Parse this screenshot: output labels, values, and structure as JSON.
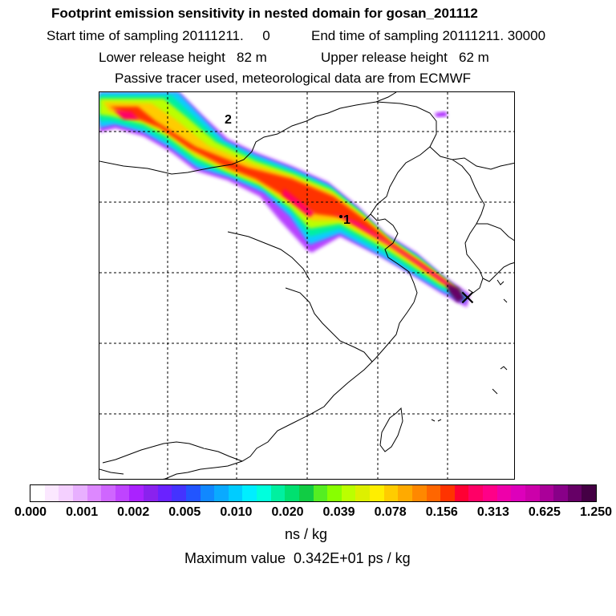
{
  "header": {
    "title": "Footprint emission sensitivity in nested domain for gosan_201112",
    "sampling_start": "Start time of sampling 20111211.     0",
    "sampling_end": "End time of sampling 20111211. 30000",
    "lower_release": "Lower release height   82 m",
    "upper_release": "Upper release height   62 m",
    "tracer_info": "Passive tracer used, meteorological data are from ECMWF"
  },
  "map": {
    "labels": {
      "point_1": "1",
      "point_2": "2"
    },
    "receptor_marker": "×"
  },
  "colorbar": {
    "tick_labels": [
      "0.000",
      "0.001",
      "0.002",
      "0.005",
      "0.010",
      "0.020",
      "0.039",
      "0.078",
      "0.156",
      "0.313",
      "0.625",
      "1.250"
    ],
    "colors": [
      "#ffffff",
      "#fbe8ff",
      "#f4d0ff",
      "#e8b0ff",
      "#dd88ff",
      "#cf66ff",
      "#bf44ff",
      "#aa22ff",
      "#8a22ee",
      "#6a22ff",
      "#4433ff",
      "#2255ff",
      "#1188ff",
      "#0aaaff",
      "#00ccff",
      "#00eeff",
      "#00ffdd",
      "#00f0a0",
      "#00e070",
      "#11cc44",
      "#55ee22",
      "#88ff00",
      "#bbff00",
      "#ddf000",
      "#ffee00",
      "#ffcc00",
      "#ffaa00",
      "#ff8800",
      "#ff6600",
      "#ff3300",
      "#ff0033",
      "#ff0066",
      "#ff0088",
      "#ee00aa",
      "#dd00bb",
      "#cc00aa",
      "#aa0099",
      "#880088",
      "#660066",
      "#440044"
    ],
    "unit": "ns / kg",
    "max_value": "Maximum value  0.342E+01 ps / kg"
  }
}
